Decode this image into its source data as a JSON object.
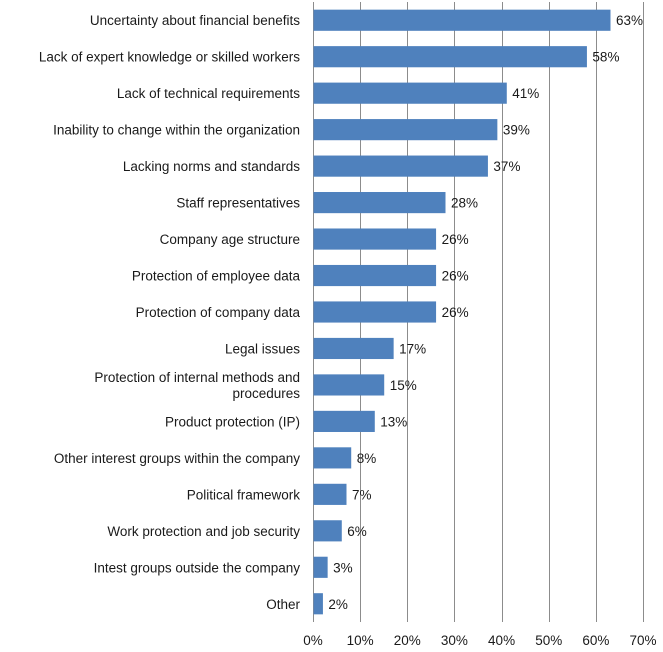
{
  "chart_data": {
    "type": "bar",
    "orientation": "horizontal",
    "categories": [
      "Uncertainty about financial benefits",
      "Lack of expert knowledge or skilled workers",
      "Lack of technical requirements",
      "Inability to change within the organization",
      "Lacking norms and standards",
      "Staff representatives",
      "Company age structure",
      "Protection of employee data",
      "Protection of company data",
      "Legal issues",
      "Protection of internal methods and procedures",
      "Product protection (IP)",
      "Other interest groups within the company",
      "Political framework",
      "Work protection and job security",
      "Intest groups outside the company",
      "Other"
    ],
    "category_lines": [
      [
        "Uncertainty about financial benefits"
      ],
      [
        "Lack of expert knowledge or skilled workers"
      ],
      [
        "Lack of technical requirements"
      ],
      [
        "Inability to change within the organization"
      ],
      [
        "Lacking norms and standards"
      ],
      [
        "Staff representatives"
      ],
      [
        "Company age structure"
      ],
      [
        "Protection of employee data"
      ],
      [
        "Protection of company data"
      ],
      [
        "Legal issues"
      ],
      [
        "Protection of internal methods and",
        "procedures"
      ],
      [
        "Product protection (IP)"
      ],
      [
        "Other interest groups within the company"
      ],
      [
        "Political framework"
      ],
      [
        "Work protection and job security"
      ],
      [
        "Intest groups outside the company"
      ],
      [
        "Other"
      ]
    ],
    "values": [
      63,
      58,
      41,
      39,
      37,
      28,
      26,
      26,
      26,
      17,
      15,
      13,
      8,
      7,
      6,
      3,
      2
    ],
    "data_labels": [
      "63%",
      "58%",
      "41%",
      "39%",
      "37%",
      "28%",
      "26%",
      "26%",
      "26%",
      "17%",
      "15%",
      "13%",
      "8%",
      "7%",
      "6%",
      "3%",
      "2%"
    ],
    "xlim": [
      0,
      70
    ],
    "xticks": [
      0,
      10,
      20,
      30,
      40,
      50,
      60,
      70
    ],
    "xtick_labels": [
      "0%",
      "10%",
      "20%",
      "30%",
      "40%",
      "50%",
      "60%",
      "70%"
    ],
    "title": "",
    "xlabel": "",
    "ylabel": "",
    "grid": "vertical",
    "legend": "none",
    "bar_color": "#4f81bd"
  }
}
